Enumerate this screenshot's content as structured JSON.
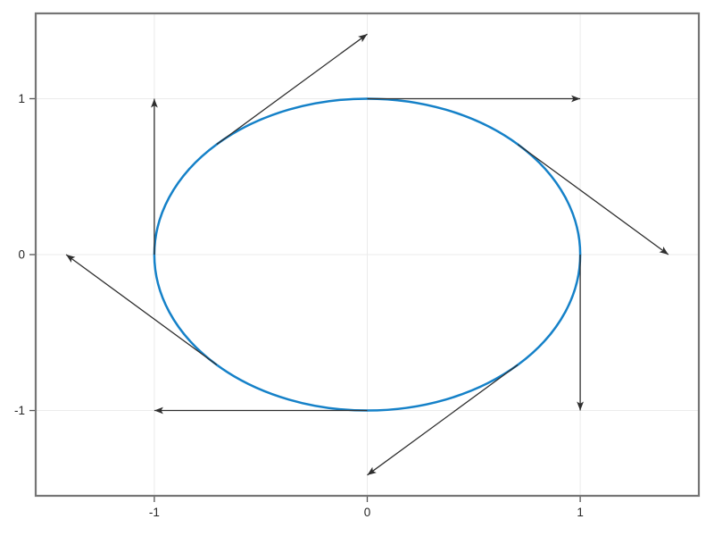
{
  "figure": {
    "background": "#ffffff"
  },
  "chart_data": {
    "type": "line",
    "title": "",
    "xlabel": "",
    "ylabel": "",
    "xlim": [
      -1.557,
      1.557
    ],
    "ylim": [
      -1.547,
      1.547
    ],
    "grid": true,
    "legend": "none",
    "x_ticks": [
      -1,
      0,
      1
    ],
    "x_tick_labels": [
      "-1",
      "0",
      "1"
    ],
    "y_ticks": [
      -1,
      0,
      1
    ],
    "y_tick_labels": [
      "-1",
      "0",
      "1"
    ],
    "axis_style": {
      "frame_color": "#757575",
      "frame_width": 2.2,
      "grid_color": "#ebebeb",
      "tick_color": "#555555",
      "tick_length": 6,
      "label_color": "#262626"
    },
    "series": [
      {
        "name": "unit_circle",
        "type": "parametric_curve",
        "shape": "circle",
        "center": [
          0,
          0
        ],
        "radius": 1,
        "color": "#1581c8",
        "line_width": 2.5
      },
      {
        "name": "tangent_vectors",
        "type": "quiver",
        "direction": "clockwise",
        "color": "#2e2e2e",
        "line_width": 1.3,
        "arrows": [
          {
            "base": [
              1.0,
              0.0
            ],
            "tip": [
              1.0,
              -1.0
            ]
          },
          {
            "base": [
              0.7071,
              -0.7071
            ],
            "tip": [
              0.0,
              -1.4142
            ]
          },
          {
            "base": [
              0.0,
              -1.0
            ],
            "tip": [
              -1.0,
              -1.0
            ]
          },
          {
            "base": [
              -0.7071,
              -0.7071
            ],
            "tip": [
              -1.4142,
              0.0
            ]
          },
          {
            "base": [
              -1.0,
              0.0
            ],
            "tip": [
              -1.0,
              1.0
            ]
          },
          {
            "base": [
              -0.7071,
              0.7071
            ],
            "tip": [
              0.0,
              1.4142
            ]
          },
          {
            "base": [
              0.0,
              1.0
            ],
            "tip": [
              1.0,
              1.0
            ]
          },
          {
            "base": [
              0.7071,
              0.7071
            ],
            "tip": [
              1.4142,
              0.0
            ]
          }
        ]
      }
    ]
  }
}
